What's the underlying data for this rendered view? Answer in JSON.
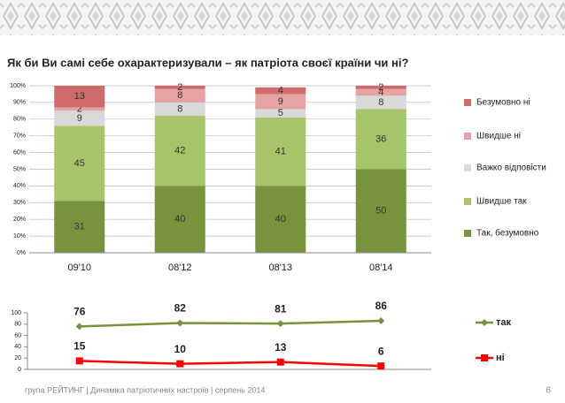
{
  "chart_data": [
    {
      "type": "stacked-bar",
      "title": "Як  би Ви самі себе охарактеризували – як патріота своєї країни чи ні?",
      "categories": [
        "09'10",
        "08'12",
        "08'13",
        "08'14"
      ],
      "series": [
        {
          "name": "Так, безумовно",
          "color": "#77933c",
          "values": [
            31,
            40,
            40,
            50
          ]
        },
        {
          "name": "Швидше так",
          "color": "#a6c46a",
          "values": [
            45,
            42,
            41,
            36
          ]
        },
        {
          "name": "Важко відповісти",
          "color": "#d9d9d9",
          "values": [
            9,
            8,
            5,
            8
          ]
        },
        {
          "name": "Швидше ні",
          "color": "#e6a3a3",
          "values": [
            2,
            8,
            9,
            4
          ]
        },
        {
          "name": "Безумовно ні",
          "color": "#cf6b6b",
          "values": [
            13,
            2,
            4,
            2
          ]
        }
      ],
      "ylim": [
        0,
        100
      ],
      "yticks": [
        {
          "value": 0,
          "label": "0%"
        },
        {
          "value": 10,
          "label": "10%"
        },
        {
          "value": 20,
          "label": "20%"
        },
        {
          "value": 30,
          "label": "30%"
        },
        {
          "value": 40,
          "label": "40%"
        },
        {
          "value": 50,
          "label": "50%"
        },
        {
          "value": 60,
          "label": "60%"
        },
        {
          "value": 70,
          "label": "70%"
        },
        {
          "value": 80,
          "label": "80%"
        },
        {
          "value": 90,
          "label": "90%"
        },
        {
          "value": 100,
          "label": "100%"
        }
      ],
      "grid": true,
      "legend": "right"
    },
    {
      "type": "line",
      "series": [
        {
          "name": "так",
          "color": "#77933c",
          "marker": "diamond",
          "values": [
            76,
            82,
            81,
            86
          ]
        },
        {
          "name": "ні",
          "color": "#ff0000",
          "marker": "square",
          "values": [
            15,
            10,
            13,
            6
          ]
        }
      ],
      "ylim": [
        0,
        100
      ],
      "yticks": [
        0,
        20,
        40,
        60,
        80,
        100
      ],
      "grid": false,
      "legend": "right"
    }
  ],
  "footer": {
    "text": "група РЕЙТИНГ |  Динаміка патріотичних настроїв |  серпень 2014",
    "page": "6"
  }
}
